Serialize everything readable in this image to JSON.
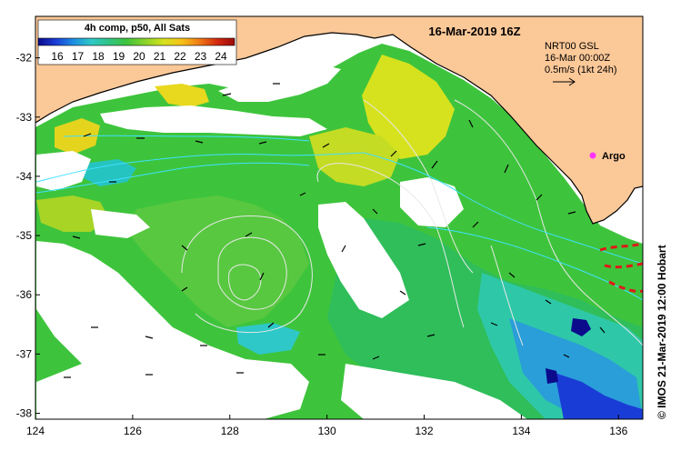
{
  "map": {
    "title": "16-Mar-2019 16Z",
    "credit": "© IMOS 21-Mar-2019 12:00 Hobart",
    "x_ticks": [
      124,
      126,
      128,
      130,
      132,
      134,
      136
    ],
    "y_ticks": [
      -32,
      -33,
      -34,
      -35,
      -36,
      -37,
      -38
    ],
    "lon_range": [
      124,
      136.5
    ],
    "lat_range": [
      -38.1,
      -31.3
    ],
    "land_color": "#fbc898",
    "legend": {
      "title": "4h comp, p50, All Sats",
      "ticks": [
        "16",
        "17",
        "18",
        "19",
        "20",
        "21",
        "22",
        "23",
        "24"
      ],
      "colors": [
        "#0b0b8c",
        "#1a3cd6",
        "#1f8fe0",
        "#2ec8c8",
        "#31c486",
        "#3ec43c",
        "#8fd42a",
        "#d6e21e",
        "#f6c21a",
        "#ef7c16",
        "#d42a10",
        "#9c0a0a"
      ]
    },
    "info": {
      "model": "NRT00 GSL",
      "time": "16-Mar 00:00Z",
      "scale": "0.5m/s (1kt 24h)"
    },
    "argo_label": "Argo",
    "argo_color": "#ff33ff",
    "current_line_color": "#40e0ff",
    "contour_color": "#e8e8e8",
    "front_color": "#e01818"
  }
}
